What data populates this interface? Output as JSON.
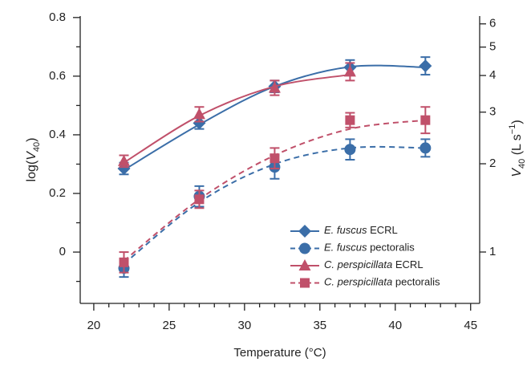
{
  "chart_data": {
    "type": "line",
    "x": [
      22,
      27,
      32,
      37,
      42
    ],
    "xlim": [
      19.1,
      45.6
    ],
    "xticks": [
      20,
      25,
      30,
      35,
      40,
      45
    ],
    "ylim": [
      -0.175,
      0.805
    ],
    "yticks": [
      0,
      0.2,
      0.4,
      0.6,
      0.8
    ],
    "y2lim": [
      0.668,
      6.38
    ],
    "y2ticks": [
      1,
      2,
      3,
      4,
      5,
      6
    ],
    "y2scale": "log",
    "xlabel": "Temperature (°C)",
    "ylabel_parts": [
      "log(",
      "V",
      "40",
      ")"
    ],
    "y2label_parts": [
      "V",
      "40",
      " (L s",
      "−1",
      ")"
    ],
    "legend": "lower right",
    "series": [
      {
        "name": "E. fuscus ECRL",
        "color": "#3b6ea8",
        "marker": "diamond",
        "dash": false,
        "values": [
          0.285,
          0.44,
          0.565,
          0.63,
          0.635
        ],
        "errors": [
          0.02,
          0.02,
          0.02,
          0.025,
          0.03
        ],
        "fit": [
          0.28,
          0.435,
          0.565,
          0.632,
          0.63
        ]
      },
      {
        "name": "E. fuscus pectoralis",
        "color": "#3b6ea8",
        "marker": "circle",
        "dash": true,
        "values": [
          -0.055,
          0.19,
          0.29,
          0.35,
          0.355
        ],
        "errors": [
          0.03,
          0.035,
          0.04,
          0.035,
          0.03
        ],
        "fit": [
          -0.04,
          0.17,
          0.3,
          0.355,
          0.355
        ]
      },
      {
        "name": "C. perspicillata ECRL",
        "color": "#c0506a",
        "marker": "triangle",
        "dash": false,
        "values": [
          0.31,
          0.47,
          0.56,
          0.615,
          null
        ],
        "errors": [
          0.02,
          0.025,
          0.025,
          0.03,
          null
        ],
        "fit": [
          0.305,
          0.465,
          0.565,
          0.605,
          null
        ]
      },
      {
        "name": "C. perspicillata pectoralis",
        "color": "#c0506a",
        "marker": "square",
        "dash": true,
        "values": [
          -0.035,
          0.18,
          0.32,
          0.45,
          0.45
        ],
        "errors": [
          0.035,
          0.03,
          0.035,
          0.025,
          0.045
        ],
        "fit": [
          -0.03,
          0.18,
          0.33,
          0.42,
          0.45
        ]
      }
    ]
  }
}
